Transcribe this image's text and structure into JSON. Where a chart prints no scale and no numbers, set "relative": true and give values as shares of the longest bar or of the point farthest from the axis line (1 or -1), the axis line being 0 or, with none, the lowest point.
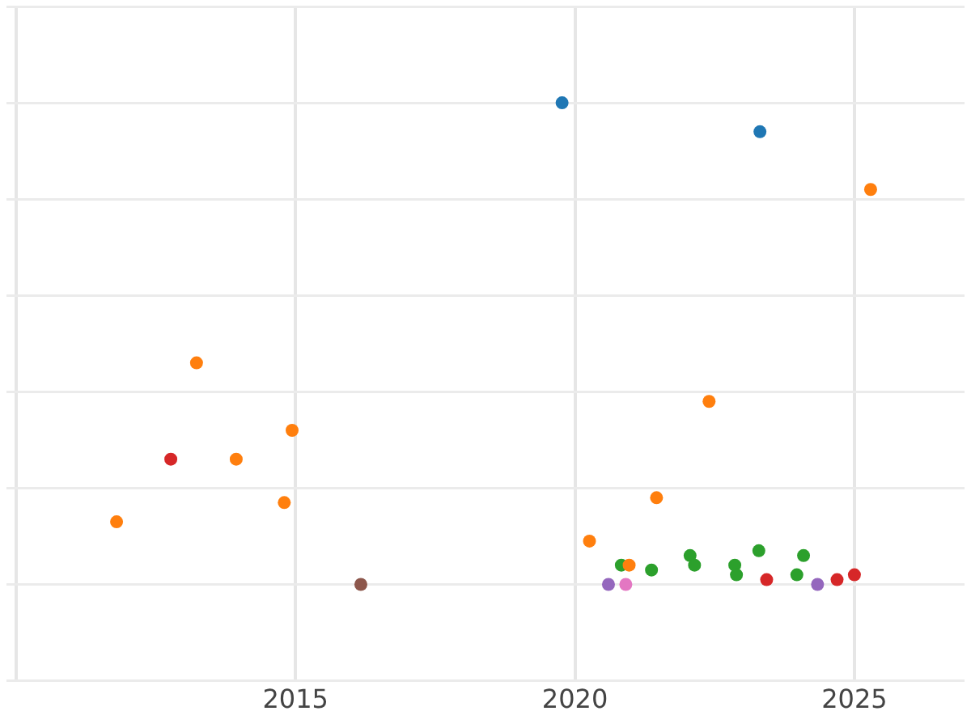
{
  "chart_data": {
    "type": "scatter",
    "relative": true,
    "grid": true,
    "marker": "circle",
    "legend": false,
    "xlim": [
      2009.83,
      2026.97
    ],
    "xticks": [
      {
        "value": 2010,
        "label": null
      },
      2015,
      2020,
      2025
    ],
    "series": [
      {
        "color": "#1f77b4",
        "x": [
          2019.77,
          2023.31
        ],
        "values": [
          1.0,
          0.94
        ]
      },
      {
        "color": "#ff7f0e",
        "x": [
          2025.29,
          2013.23,
          2014.94,
          2013.94,
          2022.4,
          2014.8,
          2011.8,
          2021.46,
          2020.26,
          2020.97
        ],
        "values": [
          0.82,
          0.46,
          0.32,
          0.26,
          0.38,
          0.17,
          0.13,
          0.18,
          0.09,
          0.04
        ]
      },
      {
        "color": "#d62728",
        "x": [
          2012.77,
          2023.43,
          2024.69,
          2025.0
        ],
        "values": [
          0.26,
          0.01,
          0.01,
          0.02
        ]
      },
      {
        "color": "#2ca02c",
        "x": [
          2020.83,
          2021.37,
          2022.06,
          2022.14,
          2022.86,
          2022.89,
          2023.29,
          2024.09,
          2023.97
        ],
        "values": [
          0.04,
          0.03,
          0.06,
          0.04,
          0.04,
          0.02,
          0.07,
          0.06,
          0.02
        ]
      },
      {
        "color": "#9467bd",
        "x": [
          2020.6,
          2024.34
        ],
        "values": [
          0,
          0
        ]
      },
      {
        "color": "#e377c2",
        "x": [
          2020.91
        ],
        "values": [
          0
        ]
      },
      {
        "color": "#8c564b",
        "x": [
          2016.17
        ],
        "values": [
          0
        ]
      }
    ]
  }
}
